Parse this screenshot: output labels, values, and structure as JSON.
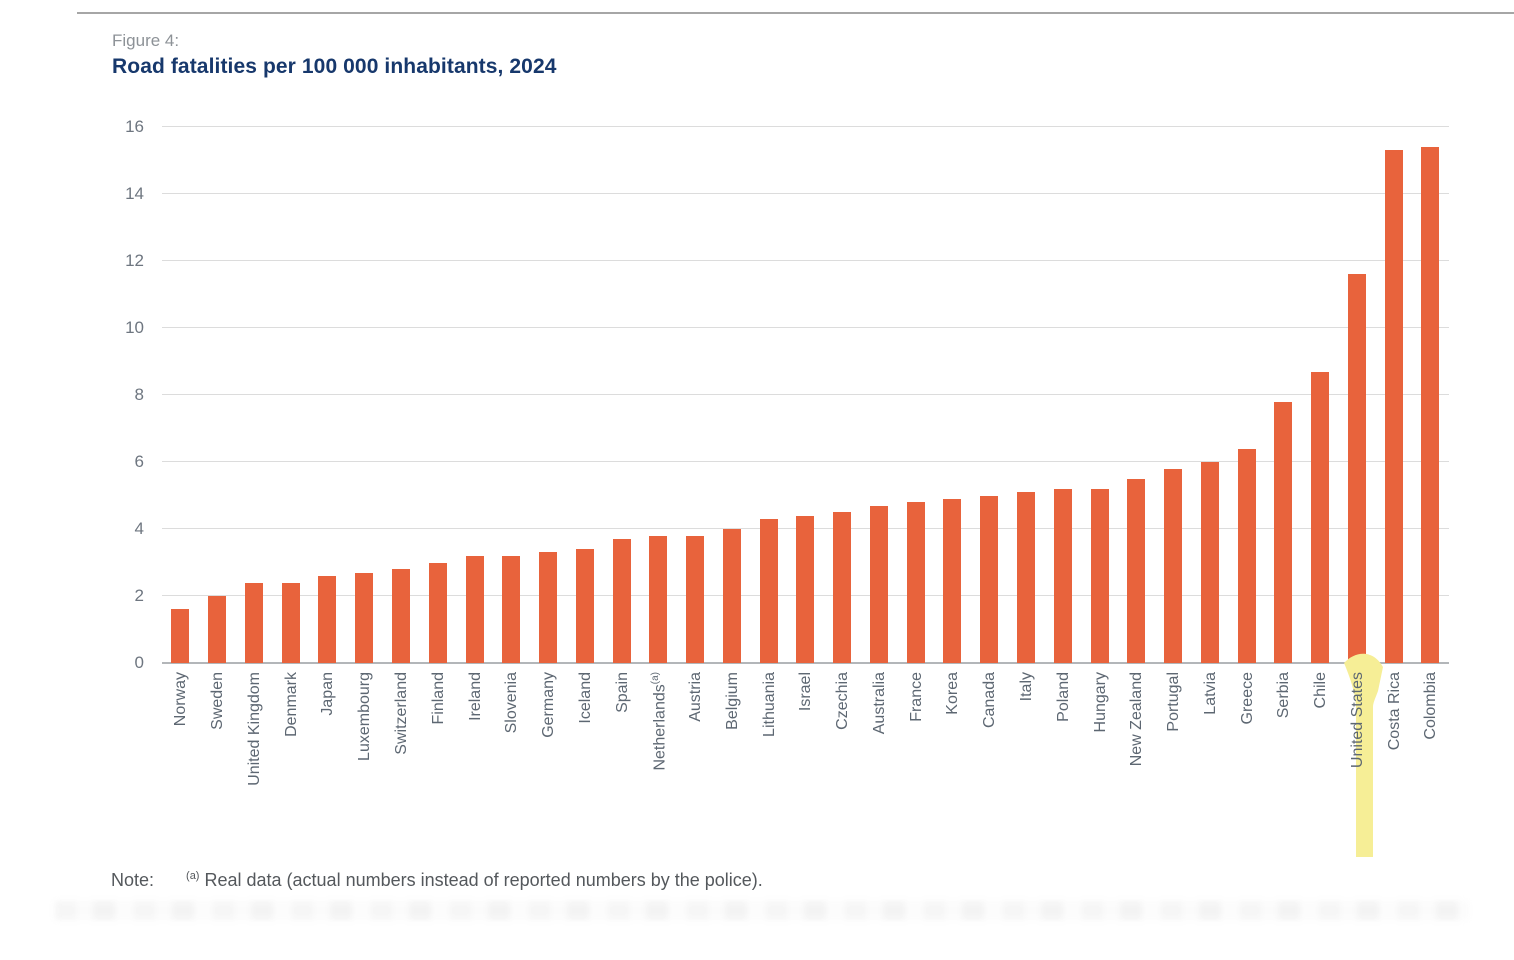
{
  "figure_label": "Figure 4:",
  "title": "Road fatalities per 100 000 inhabitants, 2024",
  "note": {
    "prefix": "Note:",
    "superscript": "(a)",
    "text": "Real data (actual numbers instead of reported numbers by the police)."
  },
  "colors": {
    "bar_orange": "#E8633C",
    "highlight_yellow": "#F6EE96",
    "title_navy": "#17386C",
    "figure_label_gray": "#8D9297",
    "axis_text_gray": "#5D6772",
    "gridline_gray": "#DCDCDC"
  },
  "chart_data": {
    "type": "bar",
    "title": "Road fatalities per 100 000 inhabitants, 2024",
    "xlabel": "",
    "ylabel": "",
    "ylim": [
      0,
      16
    ],
    "ytick_step": 2,
    "grid": true,
    "legend": "none",
    "bar_color": "#E8633C",
    "highlight_color": "#F6EE96",
    "highlighted_category": "United States",
    "category_superscripts": {
      "Netherlands": "(a)"
    },
    "categories": [
      "Norway",
      "Sweden",
      "United Kingdom",
      "Denmark",
      "Japan",
      "Luxembourg",
      "Switzerland",
      "Finland",
      "Ireland",
      "Slovenia",
      "Germany",
      "Iceland",
      "Spain",
      "Netherlands",
      "Austria",
      "Belgium",
      "Lithuania",
      "Israel",
      "Czechia",
      "Australia",
      "France",
      "Korea",
      "Canada",
      "Italy",
      "Poland",
      "Hungary",
      "New Zealand",
      "Portugal",
      "Latvia",
      "Greece",
      "Serbia",
      "Chile",
      "United States",
      "Costa Rica",
      "Colombia"
    ],
    "values": [
      1.6,
      2.0,
      2.4,
      2.4,
      2.6,
      2.7,
      2.8,
      3.0,
      3.2,
      3.2,
      3.3,
      3.4,
      3.7,
      3.8,
      3.8,
      4.0,
      4.3,
      4.4,
      4.5,
      4.7,
      4.8,
      4.9,
      5.0,
      5.1,
      5.2,
      5.2,
      5.5,
      5.8,
      6.0,
      6.4,
      7.8,
      8.7,
      11.6,
      15.3,
      15.4
    ]
  }
}
